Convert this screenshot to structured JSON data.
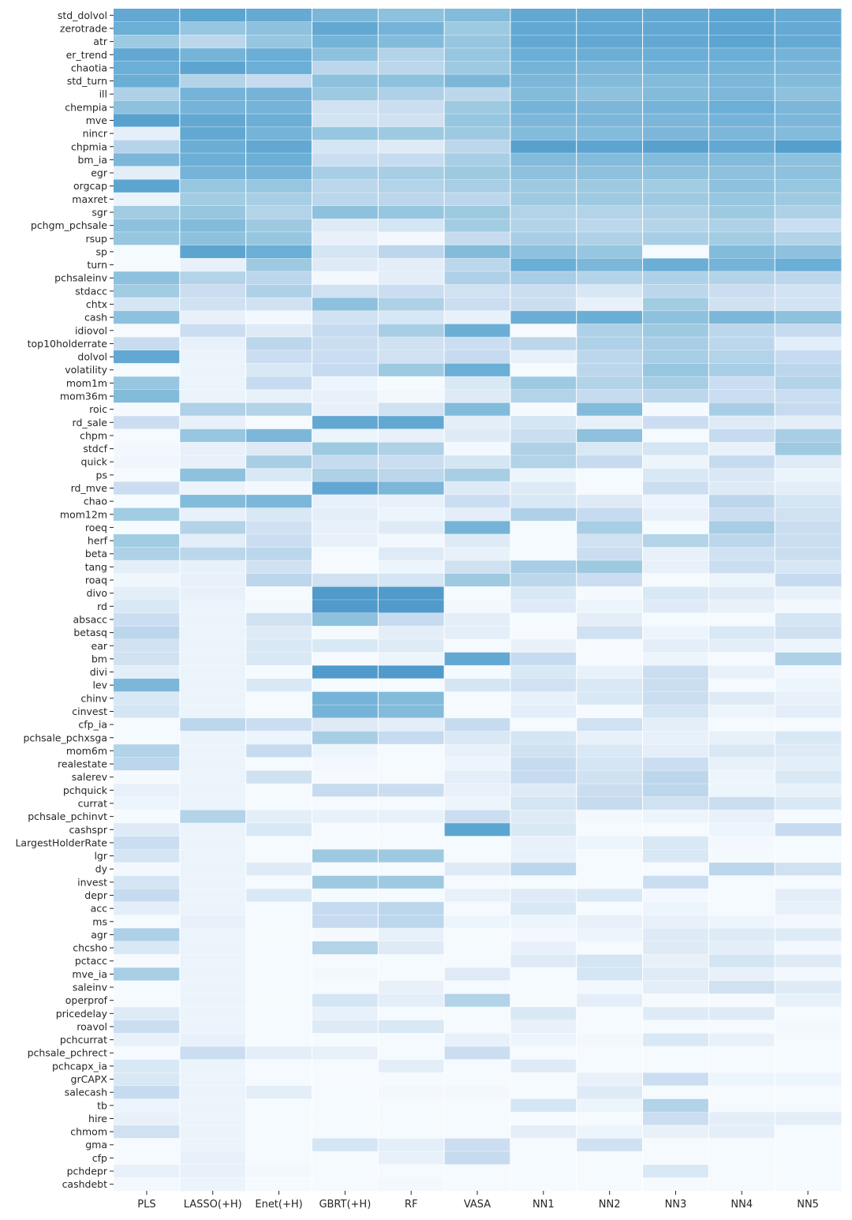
{
  "chart_data": {
    "type": "heatmap",
    "title": "",
    "xlabel": "",
    "ylabel": "",
    "x_categories": [
      "PLS",
      "LASSO(+H)",
      "Enet(+H)",
      "GBRT(+H)",
      "RF",
      "VASA",
      "NN1",
      "NN2",
      "NN3",
      "NN4",
      "NN5"
    ],
    "y_categories": [
      "std_dolvol",
      "zerotrade",
      "atr",
      "er_trend",
      "chaotia",
      "std_turn",
      "ill",
      "chempia",
      "mve",
      "nincr",
      "chpmia",
      "bm_ia",
      "egr",
      "orgcap",
      "maxret",
      "sgr",
      "pchgm_pchsale",
      "rsup",
      "sp",
      "turn",
      "pchsaleinv",
      "stdacc",
      "chtx",
      "cash",
      "idiovol",
      "top10holderrate",
      "dolvol",
      "volatility",
      "mom1m",
      "mom36m",
      "roic",
      "rd_sale",
      "chpm",
      "stdcf",
      "quick",
      "ps",
      "rd_mve",
      "chao",
      "mom12m",
      "roeq",
      "herf",
      "beta",
      "tang",
      "roaq",
      "divo",
      "rd",
      "absacc",
      "betasq",
      "ear",
      "bm",
      "divi",
      "lev",
      "chinv",
      "cinvest",
      "cfp_ia",
      "pchsale_pchxsga",
      "mom6m",
      "realestate",
      "salerev",
      "pchquick",
      "currat",
      "pchsale_pchinvt",
      "cashspr",
      "LargestHolderRate",
      "lgr",
      "dy",
      "invest",
      "depr",
      "acc",
      "ms",
      "agr",
      "chcsho",
      "pctacc",
      "mve_ia",
      "saleinv",
      "operprof",
      "pricedelay",
      "roavol",
      "pchcurrat",
      "pchsale_pchrect",
      "pchcapx_ia",
      "grCAPX",
      "salecash",
      "tb",
      "hire",
      "chmom",
      "gma",
      "cfp",
      "pchdepr",
      "cashdebt"
    ],
    "value_range": [
      0,
      1
    ],
    "colormap": "Blues",
    "colorbar": false,
    "values": [
      [
        0.88,
        0.9,
        0.87,
        0.8,
        0.75,
        0.78,
        0.88,
        0.88,
        0.88,
        0.9,
        0.87
      ],
      [
        0.85,
        0.72,
        0.75,
        0.88,
        0.82,
        0.7,
        0.88,
        0.88,
        0.88,
        0.9,
        0.87
      ],
      [
        0.7,
        0.55,
        0.72,
        0.82,
        0.78,
        0.72,
        0.88,
        0.88,
        0.88,
        0.9,
        0.87
      ],
      [
        0.88,
        0.82,
        0.85,
        0.75,
        0.6,
        0.72,
        0.85,
        0.85,
        0.85,
        0.85,
        0.82
      ],
      [
        0.85,
        0.9,
        0.85,
        0.55,
        0.55,
        0.7,
        0.82,
        0.8,
        0.82,
        0.82,
        0.8
      ],
      [
        0.85,
        0.6,
        0.5,
        0.75,
        0.75,
        0.8,
        0.8,
        0.78,
        0.78,
        0.8,
        0.78
      ],
      [
        0.62,
        0.82,
        0.82,
        0.7,
        0.62,
        0.55,
        0.78,
        0.75,
        0.78,
        0.8,
        0.75
      ],
      [
        0.75,
        0.82,
        0.82,
        0.4,
        0.45,
        0.7,
        0.82,
        0.8,
        0.82,
        0.85,
        0.8
      ],
      [
        0.92,
        0.88,
        0.85,
        0.38,
        0.4,
        0.72,
        0.8,
        0.8,
        0.8,
        0.82,
        0.8
      ],
      [
        0.18,
        0.88,
        0.82,
        0.72,
        0.7,
        0.7,
        0.78,
        0.78,
        0.8,
        0.8,
        0.78
      ],
      [
        0.58,
        0.85,
        0.88,
        0.35,
        0.25,
        0.55,
        0.92,
        0.9,
        0.92,
        0.88,
        0.93
      ],
      [
        0.8,
        0.85,
        0.85,
        0.45,
        0.5,
        0.65,
        0.78,
        0.78,
        0.78,
        0.78,
        0.75
      ],
      [
        0.2,
        0.82,
        0.82,
        0.65,
        0.65,
        0.7,
        0.75,
        0.75,
        0.75,
        0.75,
        0.75
      ],
      [
        0.9,
        0.72,
        0.72,
        0.55,
        0.6,
        0.65,
        0.7,
        0.7,
        0.68,
        0.75,
        0.72
      ],
      [
        0.12,
        0.68,
        0.65,
        0.55,
        0.55,
        0.55,
        0.7,
        0.7,
        0.7,
        0.72,
        0.7
      ],
      [
        0.68,
        0.72,
        0.6,
        0.75,
        0.72,
        0.7,
        0.6,
        0.6,
        0.62,
        0.7,
        0.62
      ],
      [
        0.75,
        0.78,
        0.7,
        0.25,
        0.35,
        0.68,
        0.6,
        0.55,
        0.58,
        0.62,
        0.45
      ],
      [
        0.72,
        0.75,
        0.72,
        0.15,
        0.05,
        0.5,
        0.65,
        0.62,
        0.65,
        0.68,
        0.6
      ],
      [
        0.02,
        0.9,
        0.85,
        0.35,
        0.55,
        0.78,
        0.75,
        0.72,
        0.02,
        0.78,
        0.75
      ],
      [
        0.02,
        0.15,
        0.7,
        0.25,
        0.2,
        0.55,
        0.85,
        0.8,
        0.85,
        0.82,
        0.85
      ],
      [
        0.75,
        0.6,
        0.55,
        0.05,
        0.2,
        0.62,
        0.65,
        0.6,
        0.62,
        0.6,
        0.55
      ],
      [
        0.68,
        0.45,
        0.62,
        0.4,
        0.45,
        0.4,
        0.45,
        0.32,
        0.55,
        0.45,
        0.38
      ],
      [
        0.35,
        0.4,
        0.4,
        0.75,
        0.62,
        0.45,
        0.45,
        0.15,
        0.68,
        0.4,
        0.38
      ],
      [
        0.75,
        0.15,
        0.05,
        0.4,
        0.32,
        0.15,
        0.85,
        0.85,
        0.75,
        0.8,
        0.75
      ],
      [
        0.02,
        0.45,
        0.25,
        0.5,
        0.65,
        0.85,
        0.02,
        0.62,
        0.7,
        0.55,
        0.5
      ],
      [
        0.48,
        0.15,
        0.55,
        0.45,
        0.4,
        0.45,
        0.55,
        0.62,
        0.65,
        0.55,
        0.22
      ],
      [
        0.88,
        0.12,
        0.45,
        0.45,
        0.4,
        0.5,
        0.15,
        0.55,
        0.65,
        0.6,
        0.5
      ],
      [
        0.02,
        0.12,
        0.3,
        0.5,
        0.7,
        0.85,
        0.02,
        0.55,
        0.72,
        0.65,
        0.55
      ],
      [
        0.72,
        0.12,
        0.5,
        0.1,
        0.02,
        0.3,
        0.7,
        0.6,
        0.65,
        0.45,
        0.6
      ],
      [
        0.78,
        0.12,
        0.15,
        0.15,
        0.05,
        0.25,
        0.6,
        0.5,
        0.55,
        0.45,
        0.45
      ],
      [
        0.02,
        0.62,
        0.6,
        0.15,
        0.4,
        0.78,
        0.02,
        0.78,
        0.02,
        0.65,
        0.5
      ],
      [
        0.45,
        0.15,
        0.02,
        0.88,
        0.88,
        0.2,
        0.35,
        0.15,
        0.45,
        0.25,
        0.2
      ],
      [
        0.02,
        0.72,
        0.8,
        0.1,
        0.15,
        0.25,
        0.45,
        0.75,
        0.02,
        0.5,
        0.65
      ],
      [
        0.05,
        0.15,
        0.25,
        0.7,
        0.62,
        0.05,
        0.62,
        0.3,
        0.35,
        0.15,
        0.7
      ],
      [
        0.08,
        0.15,
        0.65,
        0.5,
        0.45,
        0.35,
        0.6,
        0.5,
        0.1,
        0.5,
        0.25
      ],
      [
        0.02,
        0.75,
        0.3,
        0.62,
        0.55,
        0.65,
        0.1,
        0.02,
        0.3,
        0.3,
        0.12
      ],
      [
        0.45,
        0.12,
        0.05,
        0.88,
        0.8,
        0.25,
        0.25,
        0.02,
        0.45,
        0.25,
        0.2
      ],
      [
        0.02,
        0.78,
        0.8,
        0.15,
        0.15,
        0.45,
        0.3,
        0.25,
        0.1,
        0.55,
        0.35
      ],
      [
        0.68,
        0.15,
        0.3,
        0.2,
        0.1,
        0.2,
        0.62,
        0.5,
        0.15,
        0.45,
        0.4
      ],
      [
        0.02,
        0.6,
        0.4,
        0.15,
        0.25,
        0.82,
        0.02,
        0.65,
        0.02,
        0.65,
        0.45
      ],
      [
        0.68,
        0.2,
        0.45,
        0.15,
        0.05,
        0.25,
        0.02,
        0.4,
        0.6,
        0.55,
        0.45
      ],
      [
        0.62,
        0.55,
        0.55,
        0.02,
        0.25,
        0.15,
        0.02,
        0.45,
        0.15,
        0.4,
        0.45
      ],
      [
        0.2,
        0.15,
        0.4,
        0.02,
        0.1,
        0.4,
        0.65,
        0.7,
        0.15,
        0.45,
        0.32
      ],
      [
        0.08,
        0.15,
        0.55,
        0.4,
        0.35,
        0.7,
        0.55,
        0.45,
        0.02,
        0.1,
        0.5
      ],
      [
        0.2,
        0.15,
        0.02,
        0.95,
        0.95,
        0.02,
        0.3,
        0.02,
        0.3,
        0.25,
        0.15
      ],
      [
        0.3,
        0.12,
        0.05,
        0.95,
        0.95,
        0.05,
        0.25,
        0.1,
        0.25,
        0.15,
        0.05
      ],
      [
        0.45,
        0.12,
        0.4,
        0.75,
        0.5,
        0.2,
        0.02,
        0.2,
        0.02,
        0.02,
        0.35
      ],
      [
        0.55,
        0.12,
        0.25,
        0.02,
        0.2,
        0.2,
        0.02,
        0.4,
        0.1,
        0.3,
        0.4
      ],
      [
        0.4,
        0.12,
        0.3,
        0.3,
        0.25,
        0.02,
        0.15,
        0.02,
        0.2,
        0.2,
        0.1
      ],
      [
        0.4,
        0.12,
        0.3,
        0.02,
        0.1,
        0.88,
        0.5,
        0.02,
        0.1,
        0.02,
        0.62
      ],
      [
        0.2,
        0.12,
        0.02,
        0.95,
        0.95,
        0.02,
        0.3,
        0.15,
        0.45,
        0.15,
        0.05
      ],
      [
        0.8,
        0.12,
        0.3,
        0.02,
        0.02,
        0.35,
        0.4,
        0.3,
        0.45,
        0.02,
        0.1
      ],
      [
        0.3,
        0.12,
        0.02,
        0.82,
        0.78,
        0.02,
        0.15,
        0.3,
        0.45,
        0.25,
        0.15
      ],
      [
        0.35,
        0.12,
        0.02,
        0.82,
        0.78,
        0.02,
        0.2,
        0.02,
        0.35,
        0.1,
        0.2
      ],
      [
        0.02,
        0.55,
        0.45,
        0.25,
        0.2,
        0.5,
        0.02,
        0.4,
        0.2,
        0.02,
        0.02
      ],
      [
        0.02,
        0.12,
        0.1,
        0.65,
        0.5,
        0.3,
        0.35,
        0.15,
        0.15,
        0.15,
        0.3
      ],
      [
        0.6,
        0.12,
        0.5,
        0.1,
        0.02,
        0.15,
        0.4,
        0.3,
        0.2,
        0.3,
        0.25
      ],
      [
        0.55,
        0.12,
        0.02,
        0.05,
        0.02,
        0.1,
        0.5,
        0.35,
        0.45,
        0.15,
        0.2
      ],
      [
        0.02,
        0.12,
        0.4,
        0.02,
        0.02,
        0.2,
        0.5,
        0.4,
        0.55,
        0.1,
        0.3
      ],
      [
        0.15,
        0.12,
        0.02,
        0.5,
        0.45,
        0.15,
        0.25,
        0.45,
        0.55,
        0.1,
        0.15
      ],
      [
        0.1,
        0.12,
        0.02,
        0.02,
        0.02,
        0.1,
        0.35,
        0.5,
        0.4,
        0.45,
        0.3
      ],
      [
        0.02,
        0.6,
        0.2,
        0.15,
        0.15,
        0.45,
        0.25,
        0.05,
        0.1,
        0.15,
        0.02
      ],
      [
        0.25,
        0.12,
        0.3,
        0.02,
        0.02,
        0.9,
        0.3,
        0.02,
        0.02,
        0.1,
        0.5
      ],
      [
        0.45,
        0.12,
        0.02,
        0.02,
        0.02,
        0.02,
        0.15,
        0.1,
        0.3,
        0.05,
        0.02
      ],
      [
        0.35,
        0.12,
        0.02,
        0.7,
        0.7,
        0.02,
        0.15,
        0.02,
        0.3,
        0.02,
        0.02
      ],
      [
        0.05,
        0.12,
        0.25,
        0.02,
        0.02,
        0.25,
        0.55,
        0.02,
        0.02,
        0.55,
        0.4
      ],
      [
        0.35,
        0.12,
        0.02,
        0.7,
        0.7,
        0.02,
        0.02,
        0.02,
        0.45,
        0.02,
        0.02
      ],
      [
        0.5,
        0.12,
        0.3,
        0.02,
        0.02,
        0.15,
        0.25,
        0.3,
        0.05,
        0.02,
        0.2
      ],
      [
        0.2,
        0.12,
        0.02,
        0.5,
        0.55,
        0.02,
        0.3,
        0.02,
        0.1,
        0.02,
        0.15
      ],
      [
        0.02,
        0.15,
        0.02,
        0.5,
        0.55,
        0.1,
        0.1,
        0.15,
        0.15,
        0.1,
        0.05
      ],
      [
        0.62,
        0.12,
        0.02,
        0.02,
        0.15,
        0.02,
        0.05,
        0.1,
        0.25,
        0.25,
        0.25
      ],
      [
        0.3,
        0.12,
        0.02,
        0.6,
        0.25,
        0.02,
        0.15,
        0.02,
        0.25,
        0.2,
        0.05
      ],
      [
        0.02,
        0.12,
        0.02,
        0.02,
        0.02,
        0.02,
        0.25,
        0.35,
        0.15,
        0.35,
        0.25
      ],
      [
        0.65,
        0.12,
        0.02,
        0.05,
        0.02,
        0.25,
        0.02,
        0.35,
        0.25,
        0.15,
        0.05
      ],
      [
        0.02,
        0.12,
        0.02,
        0.02,
        0.15,
        0.02,
        0.02,
        0.05,
        0.2,
        0.4,
        0.25
      ],
      [
        0.02,
        0.12,
        0.02,
        0.35,
        0.2,
        0.6,
        0.02,
        0.2,
        0.02,
        0.02,
        0.15
      ],
      [
        0.25,
        0.12,
        0.02,
        0.15,
        0.02,
        0.02,
        0.3,
        0.02,
        0.25,
        0.25,
        0.02
      ],
      [
        0.45,
        0.12,
        0.02,
        0.25,
        0.3,
        0.02,
        0.15,
        0.02,
        0.02,
        0.02,
        0.05
      ],
      [
        0.15,
        0.15,
        0.02,
        0.02,
        0.02,
        0.15,
        0.1,
        0.05,
        0.3,
        0.15,
        0.02
      ],
      [
        0.02,
        0.45,
        0.2,
        0.15,
        0.02,
        0.45,
        0.02,
        0.02,
        0.02,
        0.02,
        0.02
      ],
      [
        0.3,
        0.12,
        0.02,
        0.02,
        0.2,
        0.02,
        0.25,
        0.02,
        0.02,
        0.02,
        0.02
      ],
      [
        0.3,
        0.12,
        0.02,
        0.02,
        0.02,
        0.02,
        0.02,
        0.15,
        0.45,
        0.1,
        0.1
      ],
      [
        0.5,
        0.12,
        0.2,
        0.02,
        0.05,
        0.05,
        0.02,
        0.25,
        0.02,
        0.02,
        0.02
      ],
      [
        0.1,
        0.12,
        0.02,
        0.02,
        0.02,
        0.02,
        0.35,
        0.1,
        0.6,
        0.02,
        0.02
      ],
      [
        0.15,
        0.12,
        0.02,
        0.02,
        0.02,
        0.02,
        0.02,
        0.02,
        0.45,
        0.2,
        0.2
      ],
      [
        0.4,
        0.12,
        0.02,
        0.02,
        0.02,
        0.02,
        0.2,
        0.1,
        0.15,
        0.2,
        0.02
      ],
      [
        0.02,
        0.12,
        0.02,
        0.35,
        0.2,
        0.45,
        0.02,
        0.4,
        0.02,
        0.02,
        0.02
      ],
      [
        0.02,
        0.15,
        0.02,
        0.02,
        0.15,
        0.5,
        0.02,
        0.02,
        0.02,
        0.02,
        0.02
      ],
      [
        0.15,
        0.15,
        0.05,
        0.02,
        0.02,
        0.02,
        0.02,
        0.02,
        0.3,
        0.02,
        0.02
      ],
      [
        0.05,
        0.12,
        0.02,
        0.02,
        0.05,
        0.02,
        0.02,
        0.02,
        0.02,
        0.02,
        0.02
      ]
    ]
  }
}
